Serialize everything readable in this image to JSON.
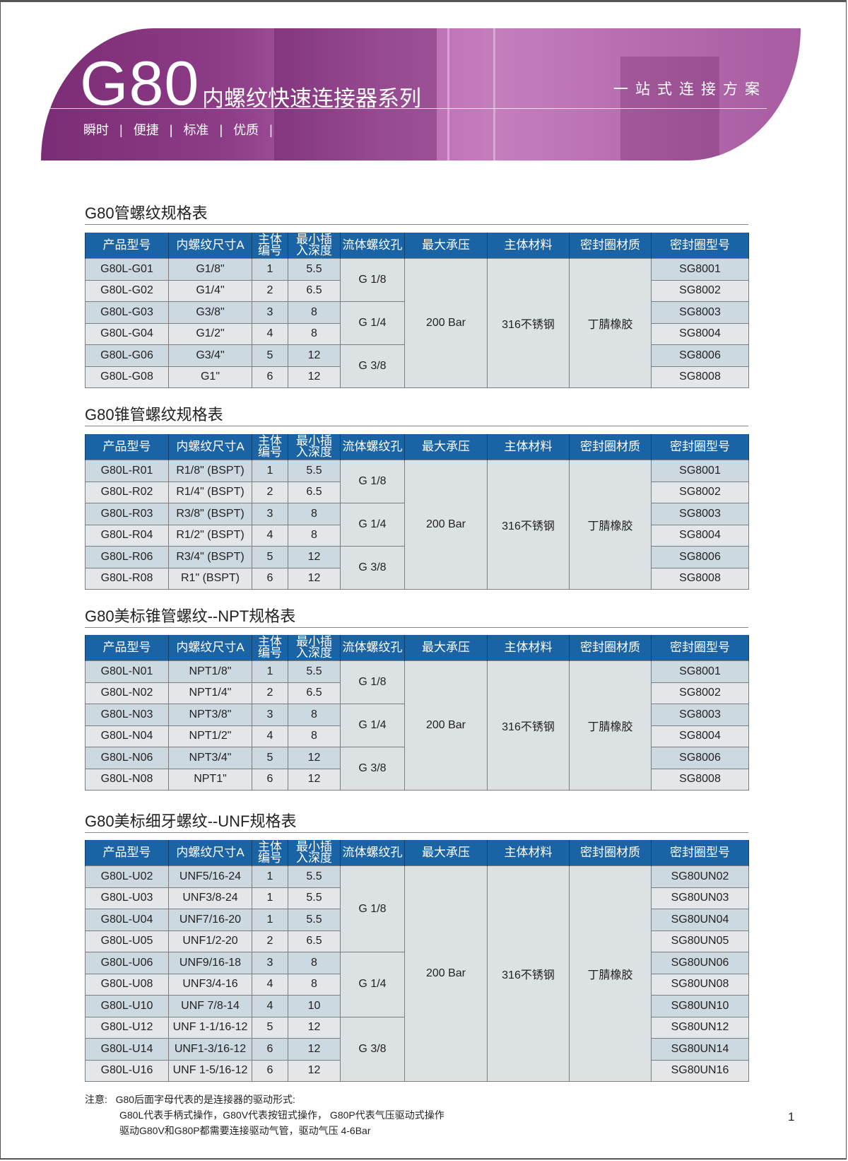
{
  "banner": {
    "model": "G80",
    "subtitle": "内螺纹快速连接器系列",
    "slogan": "一站式连接方案",
    "tags": [
      "瞬时",
      "|",
      "便捷",
      "|",
      "标准",
      "|",
      "优质",
      "|"
    ],
    "colors": {
      "dark": "#7a2c74",
      "light": "#c57ebd"
    }
  },
  "header_color": "#1a63a5",
  "columns": [
    "产品型号",
    "内螺纹尺寸A",
    "主体\n编号",
    "最小插\n入深度",
    "流体螺纹孔",
    "最大承压",
    "主体材料",
    "密封圈材质",
    "密封圈型号"
  ],
  "tables": [
    {
      "title": "G80管螺纹规格表",
      "rows": [
        [
          "G80L-G01",
          "G1/8\"",
          "1",
          "5.5",
          "SG8001"
        ],
        [
          "G80L-G02",
          "G1/4\"",
          "2",
          "6.5",
          "SG8002"
        ],
        [
          "G80L-G03",
          "G3/8\"",
          "3",
          "8",
          "SG8003"
        ],
        [
          "G80L-G04",
          "G1/2\"",
          "4",
          "8",
          "SG8004"
        ],
        [
          "G80L-G06",
          "G3/4\"",
          "5",
          "12",
          "SG8006"
        ],
        [
          "G80L-G08",
          "G1\"",
          "6",
          "12",
          "SG8008"
        ]
      ],
      "thread_groups": [
        {
          "label": "G 1/8",
          "span": 2
        },
        {
          "label": "G 1/4",
          "span": 2
        },
        {
          "label": "G 3/8",
          "span": 2
        }
      ],
      "pressure": "200 Bar",
      "material": "316不锈钢",
      "seal_material": "丁腈橡胶"
    },
    {
      "title": "G80锥管螺纹规格表",
      "rows": [
        [
          "G80L-R01",
          "R1/8\" (BSPT)",
          "1",
          "5.5",
          "SG8001"
        ],
        [
          "G80L-R02",
          "R1/4\" (BSPT)",
          "2",
          "6.5",
          "SG8002"
        ],
        [
          "G80L-R03",
          "R3/8\" (BSPT)",
          "3",
          "8",
          "SG8003"
        ],
        [
          "G80L-R04",
          "R1/2\" (BSPT)",
          "4",
          "8",
          "SG8004"
        ],
        [
          "G80L-R06",
          "R3/4\" (BSPT)",
          "5",
          "12",
          "SG8006"
        ],
        [
          "G80L-R08",
          "R1\" (BSPT)",
          "6",
          "12",
          "SG8008"
        ]
      ],
      "thread_groups": [
        {
          "label": "G 1/8",
          "span": 2
        },
        {
          "label": "G 1/4",
          "span": 2
        },
        {
          "label": "G 3/8",
          "span": 2
        }
      ],
      "pressure": "200 Bar",
      "material": "316不锈钢",
      "seal_material": "丁腈橡胶"
    },
    {
      "title": "G80美标锥管螺纹--NPT规格表",
      "rows": [
        [
          "G80L-N01",
          "NPT1/8\"",
          "1",
          "5.5",
          "SG8001"
        ],
        [
          "G80L-N02",
          "NPT1/4\"",
          "2",
          "6.5",
          "SG8002"
        ],
        [
          "G80L-N03",
          "NPT3/8\"",
          "3",
          "8",
          "SG8003"
        ],
        [
          "G80L-N04",
          "NPT1/2\"",
          "4",
          "8",
          "SG8004"
        ],
        [
          "G80L-N06",
          "NPT3/4\"",
          "5",
          "12",
          "SG8006"
        ],
        [
          "G80L-N08",
          "NPT1\"",
          "6",
          "12",
          "SG8008"
        ]
      ],
      "thread_groups": [
        {
          "label": "G 1/8",
          "span": 2
        },
        {
          "label": "G 1/4",
          "span": 2
        },
        {
          "label": "G 3/8",
          "span": 2
        }
      ],
      "pressure": "200 Bar",
      "material": "316不锈钢",
      "seal_material": "丁腈橡胶"
    },
    {
      "title": "G80美标细牙螺纹--UNF规格表",
      "rows": [
        [
          "G80L-U02",
          "UNF5/16-24",
          "1",
          "5.5",
          "SG80UN02"
        ],
        [
          "G80L-U03",
          "UNF3/8-24",
          "1",
          "5.5",
          "SG80UN03"
        ],
        [
          "G80L-U04",
          "UNF7/16-20",
          "1",
          "5.5",
          "SG80UN04"
        ],
        [
          "G80L-U05",
          "UNF1/2-20",
          "2",
          "6.5",
          "SG80UN05"
        ],
        [
          "G80L-U06",
          "UNF9/16-18",
          "3",
          "8",
          "SG80UN06"
        ],
        [
          "G80L-U08",
          "UNF3/4-16",
          "4",
          "8",
          "SG80UN08"
        ],
        [
          "G80L-U10",
          "UNF 7/8-14",
          "4",
          "10",
          "SG80UN10"
        ],
        [
          "G80L-U12",
          "UNF 1-1/16-12",
          "5",
          "12",
          "SG80UN12"
        ],
        [
          "G80L-U14",
          "UNF1-3/16-12",
          "6",
          "12",
          "SG80UN14"
        ],
        [
          "G80L-U16",
          "UNF 1-5/16-12",
          "6",
          "12",
          "SG80UN16"
        ]
      ],
      "thread_groups": [
        {
          "label": "G 1/8",
          "span": 4
        },
        {
          "label": "G 1/4",
          "span": 3
        },
        {
          "label": "G 3/8",
          "span": 3
        }
      ],
      "pressure": "200 Bar",
      "material": "316不锈钢",
      "seal_material": "丁腈橡胶"
    }
  ],
  "notes": {
    "label": "注意:",
    "lines": [
      "G80后面字母代表的是连接器的驱动形式:",
      "G80L代表手柄式操作，G80V代表按钮式操作， G80P代表气压驱动式操作",
      "驱动G80V和G80P都需要连接驱动气管，驱动气压 4-6Bar"
    ]
  },
  "page_number": "1"
}
